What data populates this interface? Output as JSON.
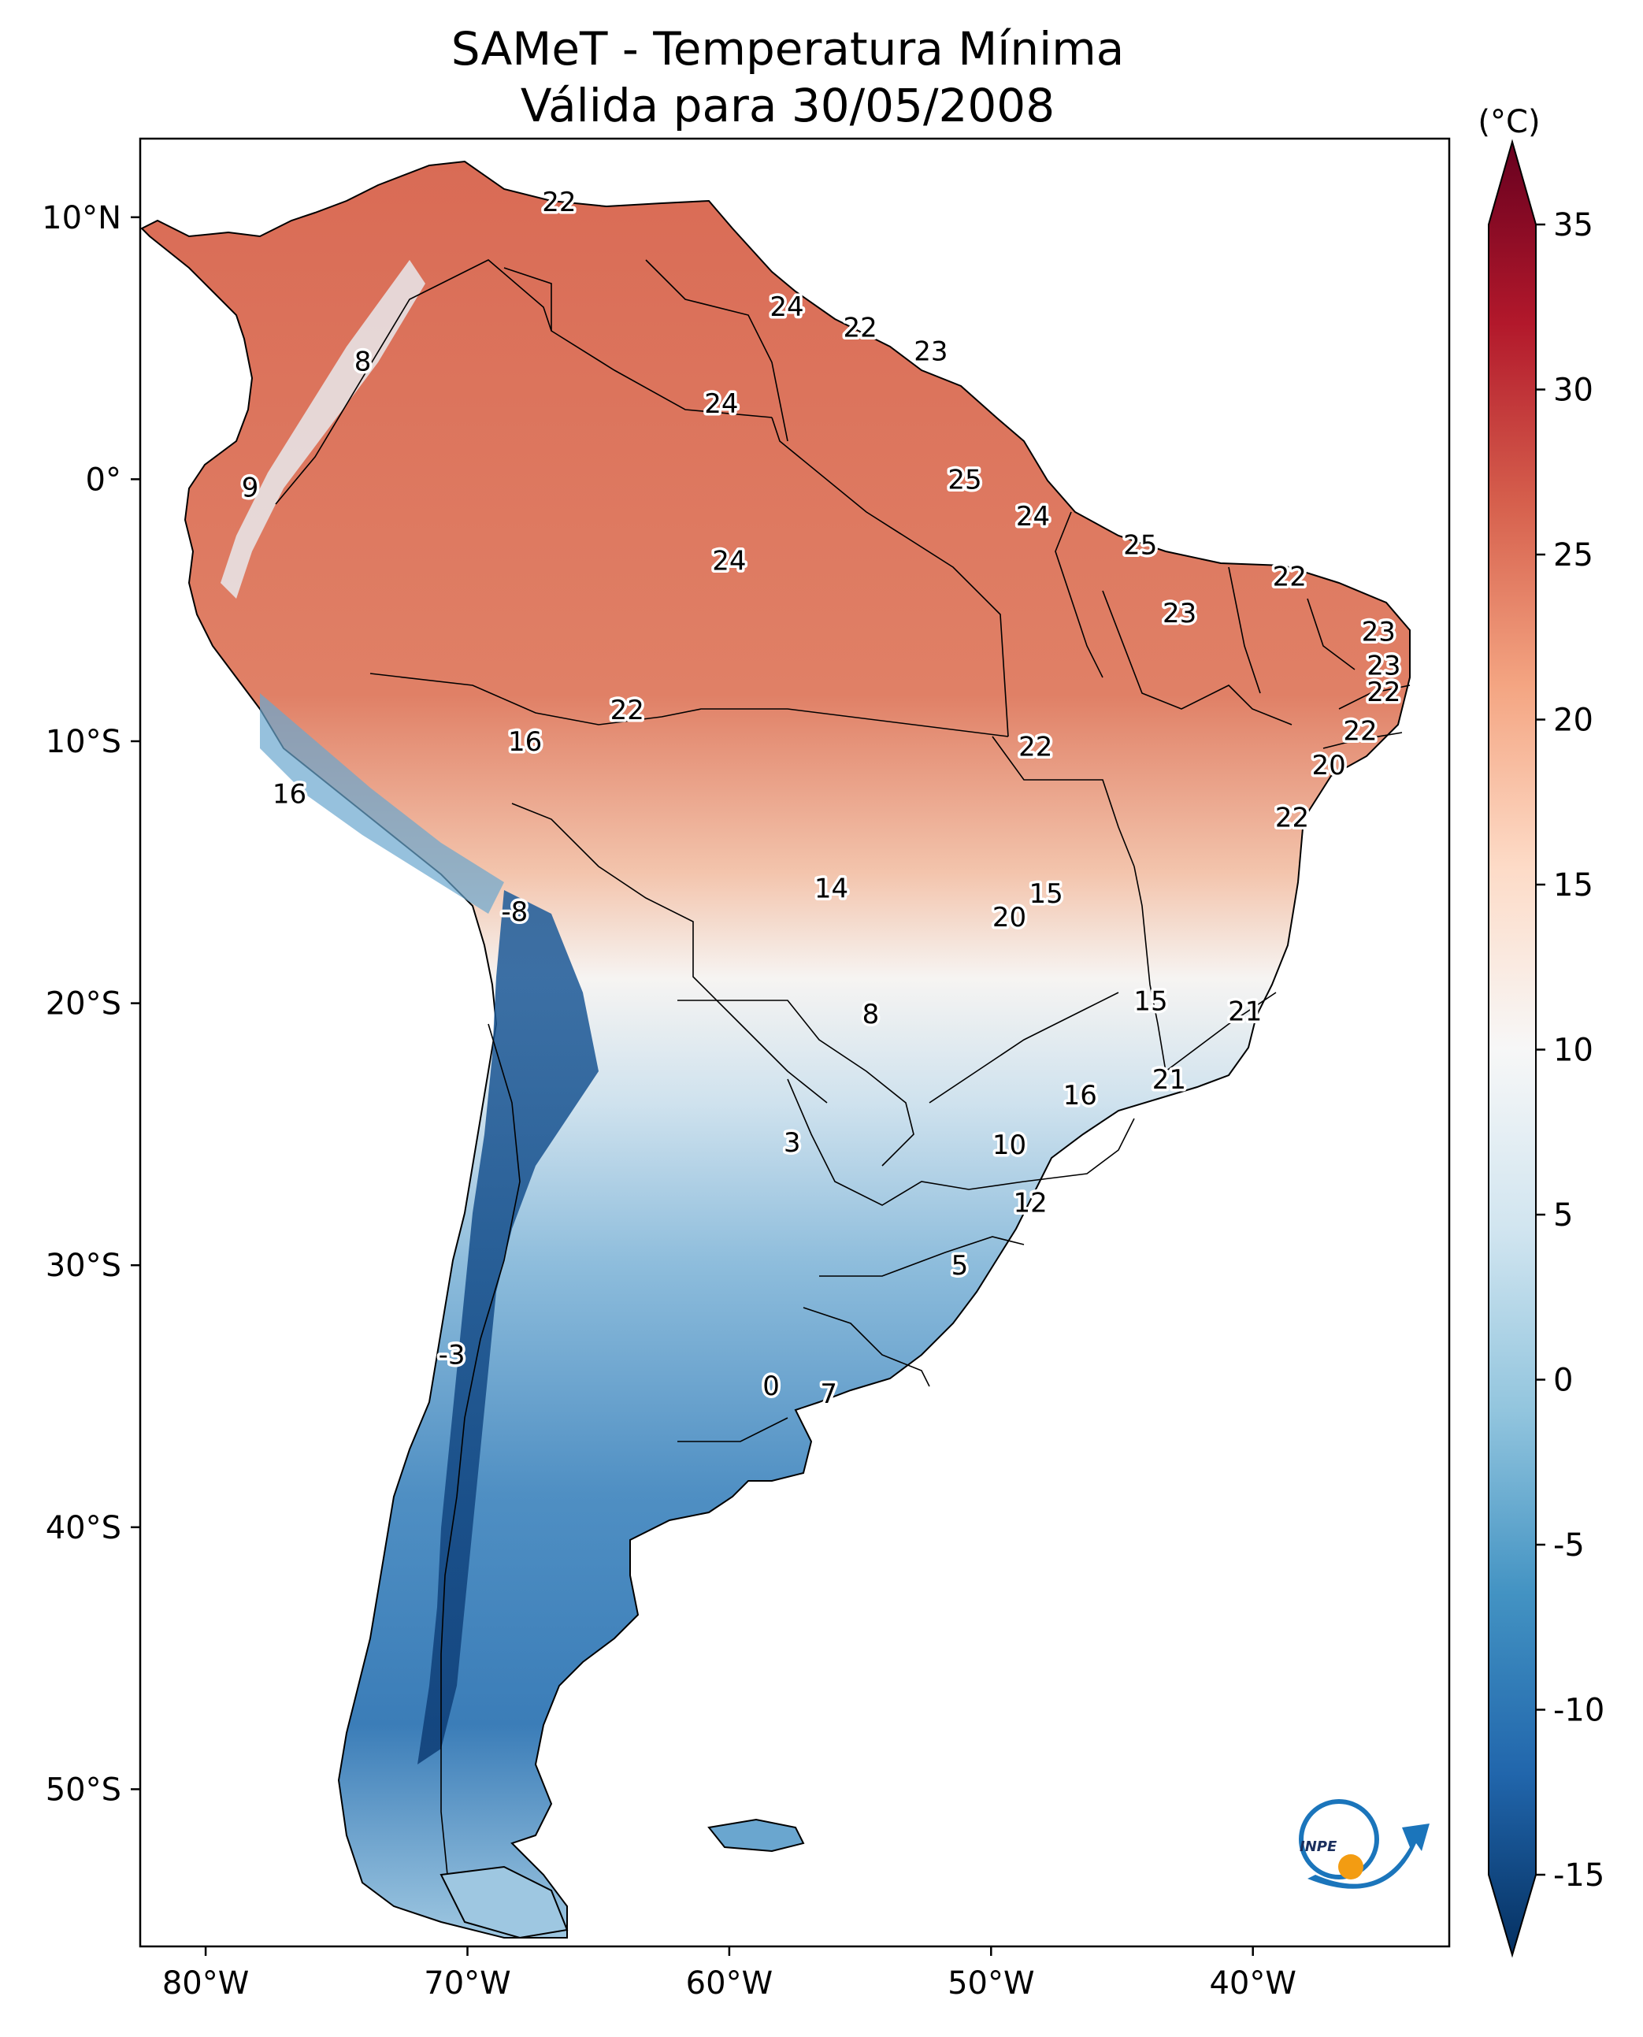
{
  "title": {
    "line1": "SAMeT - Temperatura Mínima",
    "line2": "Válida para 30/05/2008"
  },
  "map": {
    "lon_range": [
      -82.5,
      -32.5
    ],
    "lat_range": [
      -56,
      13
    ],
    "x_ticks": [
      {
        "lon": -80,
        "label": "80°W"
      },
      {
        "lon": -70,
        "label": "70°W"
      },
      {
        "lon": -60,
        "label": "60°W"
      },
      {
        "lon": -50,
        "label": "50°W"
      },
      {
        "lon": -40,
        "label": "40°W"
      }
    ],
    "y_ticks": [
      {
        "lat": 10,
        "label": "10°N"
      },
      {
        "lat": 0,
        "label": "0°"
      },
      {
        "lat": -10,
        "label": "10°S"
      },
      {
        "lat": -20,
        "label": "20°S"
      },
      {
        "lat": -30,
        "label": "30°S"
      },
      {
        "lat": -40,
        "label": "40°S"
      },
      {
        "lat": -50,
        "label": "50°S"
      }
    ],
    "station_values": [
      {
        "lon": -66.5,
        "lat": 10.6,
        "text": "22"
      },
      {
        "lon": -74.0,
        "lat": 4.5,
        "text": "8"
      },
      {
        "lon": -78.3,
        "lat": -0.3,
        "text": "9"
      },
      {
        "lon": -57.8,
        "lat": 6.6,
        "text": "24"
      },
      {
        "lon": -55.0,
        "lat": 5.8,
        "text": "22"
      },
      {
        "lon": -52.3,
        "lat": 4.9,
        "text": "23"
      },
      {
        "lon": -60.3,
        "lat": 2.9,
        "text": "24"
      },
      {
        "lon": -51.0,
        "lat": 0.0,
        "text": "25"
      },
      {
        "lon": -48.4,
        "lat": -1.4,
        "text": "24"
      },
      {
        "lon": -60.0,
        "lat": -3.1,
        "text": "24"
      },
      {
        "lon": -44.3,
        "lat": -2.5,
        "text": "25"
      },
      {
        "lon": -38.6,
        "lat": -3.7,
        "text": "22"
      },
      {
        "lon": -42.8,
        "lat": -5.1,
        "text": "23"
      },
      {
        "lon": -35.2,
        "lat": -5.8,
        "text": "23"
      },
      {
        "lon": -35.0,
        "lat": -7.1,
        "text": "23"
      },
      {
        "lon": -35.0,
        "lat": -8.1,
        "text": "22"
      },
      {
        "lon": -35.9,
        "lat": -9.6,
        "text": "22"
      },
      {
        "lon": -37.1,
        "lat": -10.9,
        "text": "20"
      },
      {
        "lon": -63.9,
        "lat": -8.8,
        "text": "22"
      },
      {
        "lon": -67.8,
        "lat": -10.0,
        "text": "16"
      },
      {
        "lon": -48.3,
        "lat": -10.2,
        "text": "22"
      },
      {
        "lon": -38.5,
        "lat": -12.9,
        "text": "22"
      },
      {
        "lon": -76.8,
        "lat": -12.0,
        "text": "16"
      },
      {
        "lon": -56.1,
        "lat": -15.6,
        "text": "14"
      },
      {
        "lon": -47.9,
        "lat": -15.8,
        "text": "15"
      },
      {
        "lon": -49.3,
        "lat": -16.7,
        "text": "20"
      },
      {
        "lon": -68.2,
        "lat": -16.5,
        "text": "-8"
      },
      {
        "lon": -43.9,
        "lat": -19.9,
        "text": "15"
      },
      {
        "lon": -40.3,
        "lat": -20.3,
        "text": "21"
      },
      {
        "lon": -54.6,
        "lat": -20.4,
        "text": "8"
      },
      {
        "lon": -43.2,
        "lat": -22.9,
        "text": "21"
      },
      {
        "lon": -46.6,
        "lat": -23.5,
        "text": "16"
      },
      {
        "lon": -49.3,
        "lat": -25.4,
        "text": "10"
      },
      {
        "lon": -57.6,
        "lat": -25.3,
        "text": "3"
      },
      {
        "lon": -48.5,
        "lat": -27.6,
        "text": "12"
      },
      {
        "lon": -51.2,
        "lat": -30.0,
        "text": "5"
      },
      {
        "lon": -70.6,
        "lat": -33.4,
        "text": "-3"
      },
      {
        "lon": -58.4,
        "lat": -34.6,
        "text": "0"
      },
      {
        "lon": -56.2,
        "lat": -34.9,
        "text": "7"
      }
    ],
    "logo_text": "INPE"
  },
  "colorbar": {
    "unit_label": "(°C)",
    "range": [
      -15,
      35
    ],
    "ticks": [
      "35",
      "30",
      "25",
      "20",
      "15",
      "10",
      "5",
      "0",
      "-5",
      "-10",
      "-15"
    ],
    "colormap": "RdBu_r",
    "colors": [
      "#053061",
      "#2166ac",
      "#4393c3",
      "#92c5de",
      "#d1e5f0",
      "#f7f7f7",
      "#fddbc7",
      "#f4a582",
      "#d6604d",
      "#b2182b",
      "#67001f"
    ]
  }
}
